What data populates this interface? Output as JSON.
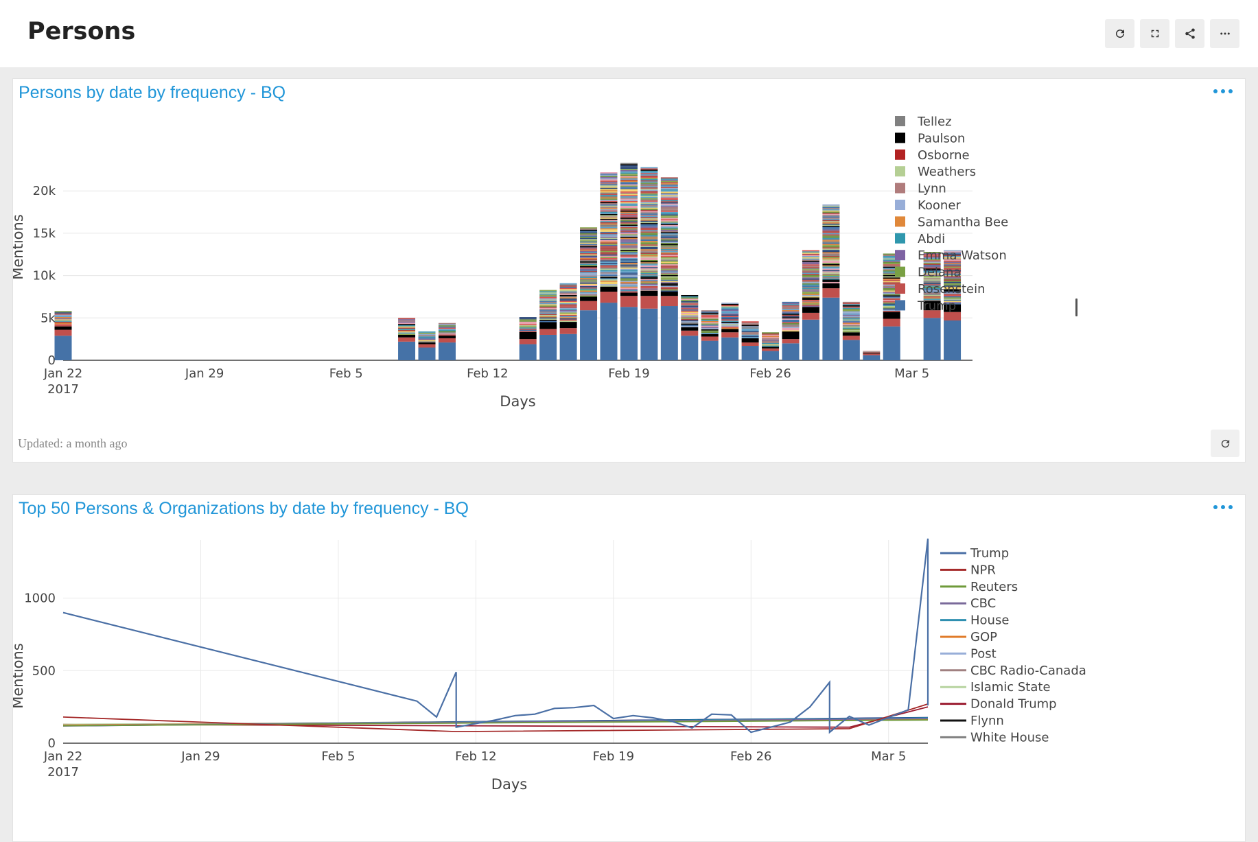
{
  "page": {
    "title": "Persons",
    "toolbar": {
      "refresh_icon": "refresh-icon",
      "fullscreen_icon": "fullscreen-icon",
      "share_icon": "share-icon",
      "more_icon": "more-icon"
    }
  },
  "cards": {
    "persons": {
      "title": "Persons by date by frequency - BQ",
      "updated": "Updated: a month ago"
    },
    "top50": {
      "title": "Top 50 Persons & Organizations by date by frequency - BQ"
    }
  },
  "chart_data": [
    {
      "type": "bar",
      "stacked": true,
      "title": "Persons by date by frequency - BQ",
      "xlabel": "Days",
      "ylabel": "Mentions",
      "ylim": [
        0,
        23500
      ],
      "yticks": [
        0,
        5000,
        10000,
        15000,
        20000
      ],
      "ytick_labels": [
        "0",
        "5k",
        "10k",
        "15k",
        "20k"
      ],
      "xlim": [
        "2017-01-22",
        "2017-03-08"
      ],
      "xticks": [
        "2017-01-22",
        "2017-01-29",
        "2017-02-05",
        "2017-02-12",
        "2017-02-19",
        "2017-02-26",
        "2017-03-05"
      ],
      "xtick_labels": [
        "Jan 22\n2017",
        "Jan 29",
        "Feb 5",
        "Feb 12",
        "Feb 19",
        "Feb 26",
        "Mar 5"
      ],
      "grid": "horizontal",
      "legend_position": "right",
      "legend": [
        "Tellez",
        "Paulson",
        "Osborne",
        "Weathers",
        "Lynn",
        "Kooner",
        "Samantha Bee",
        "Abdi",
        "Emma Watson",
        "Delana",
        "Rosenstein",
        "Trump"
      ],
      "colors": {
        "Tellez": "#808080",
        "Paulson": "#000000",
        "Osborne": "#b22222",
        "Weathers": "#b5cf94",
        "Lynn": "#b07c7c",
        "Kooner": "#98aed8",
        "Samantha Bee": "#e0883a",
        "Abdi": "#2f97ad",
        "Emma Watson": "#7e63a3",
        "Delana": "#79a043",
        "Rosenstein": "#c0504d",
        "Trump": "#4572a7"
      },
      "bars": [
        {
          "date": "2017-01-22",
          "total": 5800,
          "trump": 2900,
          "rosenstein": 700,
          "paulson": 400
        },
        {
          "date": "2017-02-08",
          "total": 5000,
          "trump": 2200,
          "rosenstein": 500,
          "paulson": 300
        },
        {
          "date": "2017-02-09",
          "total": 3400,
          "trump": 1500,
          "rosenstein": 400,
          "paulson": 200
        },
        {
          "date": "2017-02-10",
          "total": 4400,
          "trump": 2100,
          "rosenstein": 500,
          "paulson": 300
        },
        {
          "date": "2017-02-14",
          "total": 5100,
          "trump": 1900,
          "rosenstein": 600,
          "paulson": 700
        },
        {
          "date": "2017-02-15",
          "total": 8300,
          "trump": 3000,
          "rosenstein": 700,
          "paulson": 800
        },
        {
          "date": "2017-02-16",
          "total": 9100,
          "trump": 3100,
          "rosenstein": 700,
          "paulson": 600
        },
        {
          "date": "2017-02-17",
          "total": 15700,
          "trump": 5900,
          "rosenstein": 1100,
          "paulson": 500
        },
        {
          "date": "2017-02-18",
          "total": 22200,
          "trump": 6800,
          "rosenstein": 1300,
          "paulson": 600
        },
        {
          "date": "2017-02-19",
          "total": 23300,
          "trump": 6300,
          "rosenstein": 1300,
          "paulson": 400
        },
        {
          "date": "2017-02-20",
          "total": 22800,
          "trump": 6100,
          "rosenstein": 1500,
          "paulson": 600
        },
        {
          "date": "2017-02-21",
          "total": 21600,
          "trump": 6400,
          "rosenstein": 1200,
          "paulson": 500
        },
        {
          "date": "2017-02-22",
          "total": 7700,
          "trump": 2900,
          "rosenstein": 600,
          "paulson": 400
        },
        {
          "date": "2017-02-23",
          "total": 5900,
          "trump": 2300,
          "rosenstein": 500,
          "paulson": 300
        },
        {
          "date": "2017-02-24",
          "total": 6800,
          "trump": 2700,
          "rosenstein": 600,
          "paulson": 400
        },
        {
          "date": "2017-02-25",
          "total": 4600,
          "trump": 1700,
          "rosenstein": 400,
          "paulson": 500
        },
        {
          "date": "2017-02-26",
          "total": 3300,
          "trump": 1100,
          "rosenstein": 300,
          "paulson": 200
        },
        {
          "date": "2017-02-27",
          "total": 6900,
          "trump": 2000,
          "rosenstein": 500,
          "paulson": 900
        },
        {
          "date": "2017-02-28",
          "total": 13000,
          "trump": 4800,
          "rosenstein": 800,
          "paulson": 700
        },
        {
          "date": "2017-03-01",
          "total": 18400,
          "trump": 7400,
          "rosenstein": 1100,
          "paulson": 600
        },
        {
          "date": "2017-03-02",
          "total": 6900,
          "trump": 2400,
          "rosenstein": 500,
          "paulson": 400
        },
        {
          "date": "2017-03-03",
          "total": 1100,
          "trump": 600,
          "rosenstein": 200,
          "paulson": 100
        },
        {
          "date": "2017-03-04",
          "total": 12600,
          "trump": 4000,
          "rosenstein": 900,
          "paulson": 800
        },
        {
          "date": "2017-03-06",
          "total": 12800,
          "trump": 5000,
          "rosenstein": 900,
          "paulson": 1100
        },
        {
          "date": "2017-03-07",
          "total": 13000,
          "trump": 4700,
          "rosenstein": 1000,
          "paulson": 900
        }
      ]
    },
    {
      "type": "line",
      "title": "Top 50 Persons & Organizations by date by frequency - BQ",
      "xlabel": "Days",
      "ylabel": "Mentions",
      "ylim": [
        0,
        1400
      ],
      "yticks": [
        0,
        500,
        1000
      ],
      "ytick_labels": [
        "0",
        "500",
        "1000"
      ],
      "xlim": [
        "2017-01-22",
        "2017-03-07"
      ],
      "xticks": [
        "2017-01-22",
        "2017-01-29",
        "2017-02-05",
        "2017-02-12",
        "2017-02-19",
        "2017-02-26",
        "2017-03-05"
      ],
      "xtick_labels": [
        "Jan 22\n2017",
        "Jan 29",
        "Feb 5",
        "Feb 12",
        "Feb 19",
        "Feb 26",
        "Mar 5"
      ],
      "grid": "both",
      "legend_position": "right",
      "series": [
        {
          "name": "Trump",
          "color": "#4a6fa5",
          "points": [
            [
              "2017-01-22",
              900
            ],
            [
              "2017-02-09",
              290
            ],
            [
              "2017-02-10",
              180
            ],
            [
              "2017-02-11",
              490
            ],
            [
              "2017-02-11",
              110
            ],
            [
              "2017-02-13",
              160
            ],
            [
              "2017-02-14",
              190
            ],
            [
              "2017-02-15",
              200
            ],
            [
              "2017-02-16",
              240
            ],
            [
              "2017-02-17",
              245
            ],
            [
              "2017-02-18",
              260
            ],
            [
              "2017-02-19",
              170
            ],
            [
              "2017-02-20",
              190
            ],
            [
              "2017-02-21",
              175
            ],
            [
              "2017-02-22",
              150
            ],
            [
              "2017-02-23",
              105
            ],
            [
              "2017-02-24",
              200
            ],
            [
              "2017-02-25",
              195
            ],
            [
              "2017-02-26",
              75
            ],
            [
              "2017-02-27",
              110
            ],
            [
              "2017-02-28",
              145
            ],
            [
              "2017-03-01",
              250
            ],
            [
              "2017-03-02",
              420
            ],
            [
              "2017-03-02",
              75
            ],
            [
              "2017-03-03",
              185
            ],
            [
              "2017-03-04",
              125
            ],
            [
              "2017-03-06",
              230
            ],
            [
              "2017-03-07",
              1410
            ],
            [
              "2017-03-07",
              260
            ]
          ]
        },
        {
          "name": "NPR",
          "color": "#a52a2a",
          "points": [
            [
              "2017-01-22",
              180
            ],
            [
              "2017-02-11",
              80
            ],
            [
              "2017-03-03",
              100
            ],
            [
              "2017-03-07",
              270
            ]
          ]
        },
        {
          "name": "Reuters",
          "color": "#6f9a3a",
          "points": [
            [
              "2017-01-22",
              120
            ],
            [
              "2017-03-07",
              160
            ]
          ]
        },
        {
          "name": "CBC",
          "color": "#7a6a9a",
          "points": [
            [
              "2017-01-22",
              120
            ],
            [
              "2017-03-07",
              170
            ]
          ]
        },
        {
          "name": "House",
          "color": "#2e8fb0",
          "points": [
            [
              "2017-01-22",
              120
            ],
            [
              "2017-03-07",
              175
            ]
          ]
        },
        {
          "name": "GOP",
          "color": "#e07b2a",
          "points": [
            [
              "2017-01-22",
              125
            ],
            [
              "2017-03-07",
              165
            ]
          ]
        },
        {
          "name": "Post",
          "color": "#98aed8",
          "points": [
            [
              "2017-01-22",
              125
            ],
            [
              "2017-03-07",
              170
            ]
          ]
        },
        {
          "name": "CBC Radio-Canada",
          "color": "#a08080",
          "points": [
            [
              "2017-01-22",
              125
            ],
            [
              "2017-03-07",
              165
            ]
          ]
        },
        {
          "name": "Islamic State",
          "color": "#b8d4a0",
          "points": [
            [
              "2017-01-22",
              130
            ],
            [
              "2017-03-07",
              160
            ]
          ]
        },
        {
          "name": "Donald Trump",
          "color": "#9b1b30",
          "points": [
            [
              "2017-01-22",
              130
            ],
            [
              "2017-03-03",
              110
            ],
            [
              "2017-03-07",
              250
            ]
          ]
        },
        {
          "name": "Flynn",
          "color": "#111111",
          "points": [
            [
              "2017-01-22",
              120
            ],
            [
              "2017-03-07",
              175
            ]
          ]
        },
        {
          "name": "White House",
          "color": "#808080",
          "points": [
            [
              "2017-01-22",
              125
            ],
            [
              "2017-03-07",
              175
            ]
          ]
        }
      ]
    }
  ]
}
